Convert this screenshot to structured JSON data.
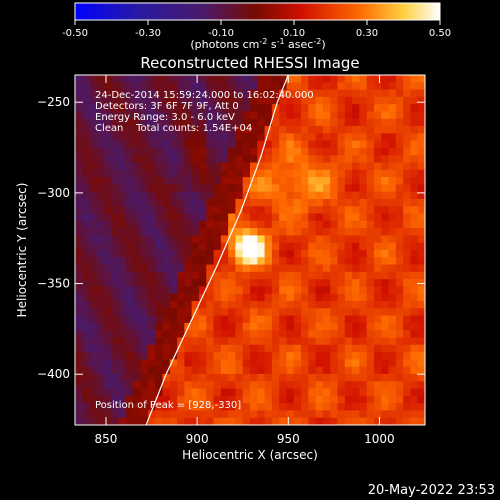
{
  "chart_data": {
    "type": "heatmap",
    "title": "Reconstructed RHESSI Image",
    "xlabel": "Heliocentric X (arcsec)",
    "ylabel": "Heliocentric Y (arcsec)",
    "xlim": [
      833,
      1025
    ],
    "ylim": [
      -428,
      -235
    ],
    "xticks": [
      850,
      900,
      950,
      1000
    ],
    "yticks": [
      -250,
      -300,
      -350,
      -400
    ],
    "colorbar": {
      "range": [
        -0.5,
        0.5
      ],
      "ticks": [
        "-0.50",
        "-0.30",
        "-0.10",
        "0.10",
        "0.30",
        "0.50"
      ],
      "unit_label_parts": [
        "(photons cm",
        "-2",
        " s",
        "-1",
        " asec",
        "-2",
        ")"
      ],
      "colormap": "blue-purple-red-yellow-white"
    },
    "annotations": [
      "24-Dec-2014 15:59:24.000 to 16:02:40.000",
      "Detectors: 3F 6F 7F 9F, Att 0",
      "Energy Range: 3.0 - 6.0 keV",
      "Clean    Total counts: 1.54E+04"
    ],
    "peak_text": "Position of Peak = [928,-330]",
    "peak": [
      928,
      -330
    ],
    "limb_curve": [
      [
        872,
        -428
      ],
      [
        883,
        -400
      ],
      [
        897,
        -370
      ],
      [
        911,
        -340
      ],
      [
        924,
        -310
      ],
      [
        935,
        -280
      ],
      [
        944,
        -250
      ],
      [
        950,
        -235
      ]
    ],
    "timestamp": "20-May-2022 23:53"
  }
}
